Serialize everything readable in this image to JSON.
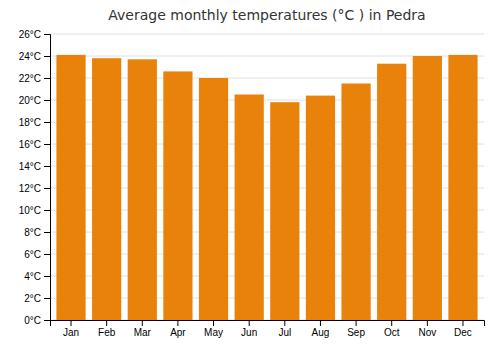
{
  "chart_data": {
    "type": "bar",
    "title": "Average monthly temperatures (°C ) in Pedra",
    "categories": [
      "Jan",
      "Feb",
      "Mar",
      "Apr",
      "May",
      "Jun",
      "Jul",
      "Aug",
      "Sep",
      "Oct",
      "Nov",
      "Dec"
    ],
    "values": [
      24.1,
      23.8,
      23.7,
      22.6,
      22.0,
      20.5,
      19.8,
      20.4,
      21.5,
      23.3,
      24.0,
      24.1
    ],
    "color": "#E8820A",
    "ylim": [
      0,
      26
    ],
    "yticks": [
      {
        "value": 0,
        "label": "0°C"
      },
      {
        "value": 2,
        "label": "2°C"
      },
      {
        "value": 4,
        "label": "4°C"
      },
      {
        "value": 6,
        "label": "6°C"
      },
      {
        "value": 8,
        "label": "8°C"
      },
      {
        "value": 10,
        "label": "10°C"
      },
      {
        "value": 12,
        "label": "12°C"
      },
      {
        "value": 14,
        "label": "14°C"
      },
      {
        "value": 16,
        "label": "16°C"
      },
      {
        "value": 18,
        "label": "18°C"
      },
      {
        "value": 20,
        "label": "20°C"
      },
      {
        "value": 22,
        "label": "22°C"
      },
      {
        "value": 24,
        "label": "24°C"
      },
      {
        "value": 26,
        "label": "26°C"
      }
    ],
    "grid": true
  }
}
